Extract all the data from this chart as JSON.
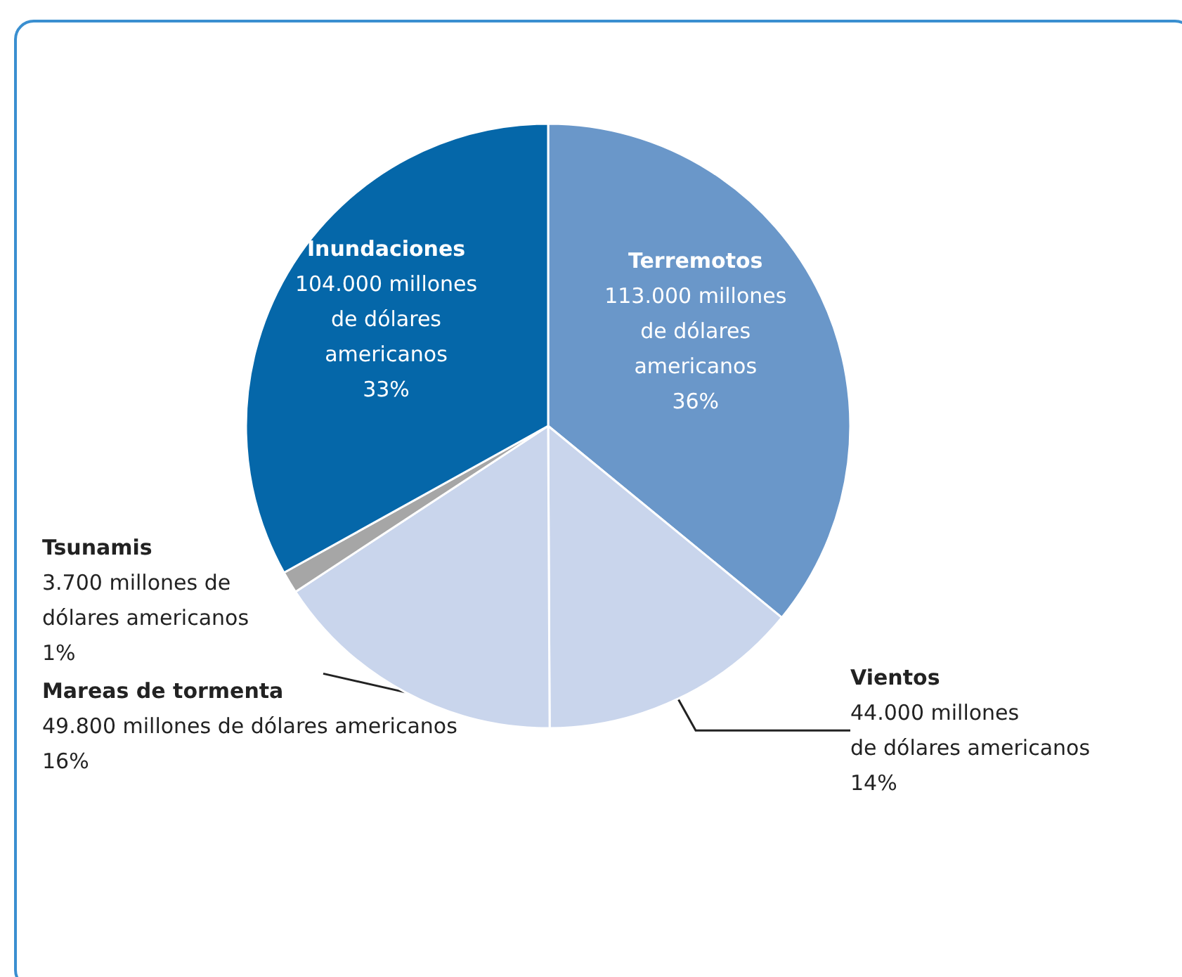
{
  "chart_data": {
    "type": "pie",
    "categories": [
      "Terremotos",
      "Vientos",
      "Mareas de tormenta",
      "Tsunamis",
      "Inundaciones"
    ],
    "values": [
      113000,
      44000,
      49800,
      3700,
      104000
    ],
    "colors": [
      "#6a97c9",
      "#c9d5ec",
      "#c9d5ec",
      "#a6a6a6",
      "#0567a9"
    ],
    "value_labels": [
      "113.000 millones\nde dólares\namericanos\n36%",
      "44.000 millones\nde dólares americanos\n14%",
      "49.800 millones de dólares americanos\n16%",
      "3.700 millones de\ndólares americanos\n1%",
      "104.000 millones\nde dólares\namericanos\n33%"
    ],
    "legend": false
  }
}
